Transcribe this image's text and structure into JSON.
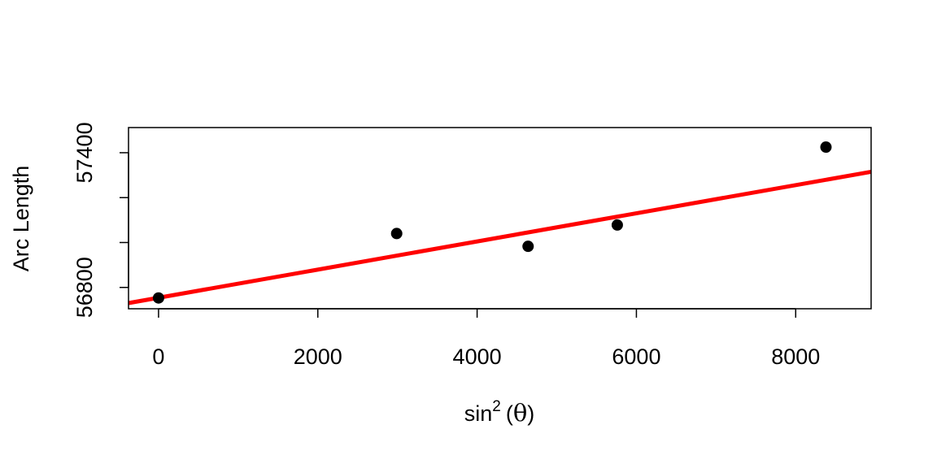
{
  "chart_data": {
    "type": "scatter",
    "xlabel": {
      "prefix": "sin",
      "superscript": "2",
      "open": "(",
      "symbol": "θ",
      "close": ")"
    },
    "ylabel": "Arc Length",
    "xlim": [
      -377,
      8947
    ],
    "ylim": [
      56705,
      57512
    ],
    "xticks": [
      0,
      2000,
      4000,
      6000,
      8000
    ],
    "xtick_labels": [
      "0",
      "2000",
      "4000",
      "6000",
      "8000"
    ],
    "yticks": [
      56800,
      57000,
      57200,
      57400
    ],
    "ytick_labels": [
      "56800",
      "",
      "",
      "57400"
    ],
    "grid": false,
    "series": [
      {
        "kind": "points",
        "color": "#000000",
        "points": [
          {
            "x": 0,
            "y": 56753
          },
          {
            "x": 2990,
            "y": 57040
          },
          {
            "x": 4640,
            "y": 56983
          },
          {
            "x": 5760,
            "y": 57078
          },
          {
            "x": 8380,
            "y": 57425
          }
        ]
      },
      {
        "kind": "fit-line",
        "color": "#ff0000",
        "intercept": 56754,
        "slope": 0.0627
      }
    ]
  }
}
